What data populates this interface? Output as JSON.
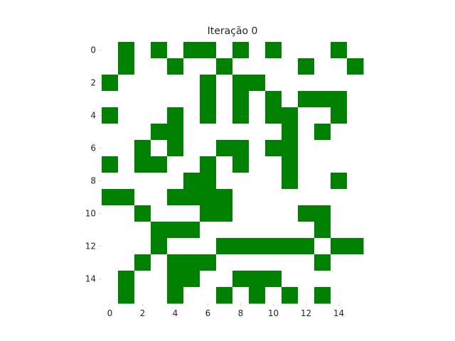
{
  "chart_data": {
    "type": "heatmap",
    "title": "Iteração 0",
    "xlabel": "",
    "ylabel": "",
    "xlim": [
      -0.5,
      15.5
    ],
    "ylim": [
      15.5,
      -0.5
    ],
    "x_ticks": [
      0,
      2,
      4,
      6,
      8,
      10,
      12,
      14
    ],
    "y_ticks": [
      0,
      2,
      4,
      6,
      8,
      10,
      12,
      14
    ],
    "grid": false,
    "legend": "none",
    "colors": {
      "alive": "#008000",
      "dead": "#ffffff",
      "text": "#262626",
      "tick": "#d9d9d9"
    },
    "grid_values": [
      [
        0,
        1,
        0,
        1,
        0,
        1,
        1,
        0,
        1,
        0,
        1,
        0,
        0,
        0,
        1,
        0
      ],
      [
        0,
        1,
        0,
        0,
        1,
        0,
        0,
        1,
        0,
        0,
        0,
        0,
        1,
        0,
        0,
        1
      ],
      [
        1,
        0,
        0,
        0,
        0,
        0,
        1,
        0,
        1,
        1,
        0,
        0,
        0,
        0,
        0,
        0
      ],
      [
        0,
        0,
        0,
        0,
        0,
        0,
        1,
        0,
        1,
        0,
        1,
        0,
        1,
        1,
        1,
        0
      ],
      [
        1,
        0,
        0,
        0,
        1,
        0,
        1,
        0,
        1,
        0,
        1,
        1,
        0,
        0,
        1,
        0
      ],
      [
        0,
        0,
        0,
        1,
        1,
        0,
        0,
        0,
        0,
        0,
        0,
        1,
        0,
        1,
        0,
        0
      ],
      [
        0,
        0,
        1,
        0,
        1,
        0,
        0,
        1,
        1,
        0,
        1,
        1,
        0,
        0,
        0,
        0
      ],
      [
        1,
        0,
        1,
        1,
        0,
        0,
        1,
        0,
        1,
        0,
        0,
        1,
        0,
        0,
        0,
        0
      ],
      [
        0,
        0,
        0,
        0,
        0,
        1,
        1,
        0,
        0,
        0,
        0,
        1,
        0,
        0,
        1,
        0
      ],
      [
        1,
        1,
        0,
        0,
        1,
        1,
        1,
        1,
        0,
        0,
        0,
        0,
        0,
        0,
        0,
        0
      ],
      [
        0,
        0,
        1,
        0,
        0,
        0,
        1,
        1,
        0,
        0,
        0,
        0,
        1,
        1,
        0,
        0
      ],
      [
        0,
        0,
        0,
        1,
        1,
        1,
        0,
        0,
        0,
        0,
        0,
        0,
        0,
        1,
        0,
        0
      ],
      [
        0,
        0,
        0,
        1,
        0,
        0,
        0,
        1,
        1,
        1,
        1,
        1,
        1,
        0,
        1,
        1
      ],
      [
        0,
        0,
        1,
        0,
        1,
        1,
        1,
        0,
        0,
        0,
        0,
        0,
        0,
        1,
        0,
        0
      ],
      [
        0,
        1,
        0,
        0,
        1,
        1,
        0,
        0,
        1,
        1,
        1,
        0,
        0,
        0,
        0,
        0
      ],
      [
        0,
        1,
        0,
        0,
        1,
        0,
        0,
        1,
        0,
        1,
        0,
        1,
        0,
        1,
        0,
        0
      ]
    ]
  }
}
